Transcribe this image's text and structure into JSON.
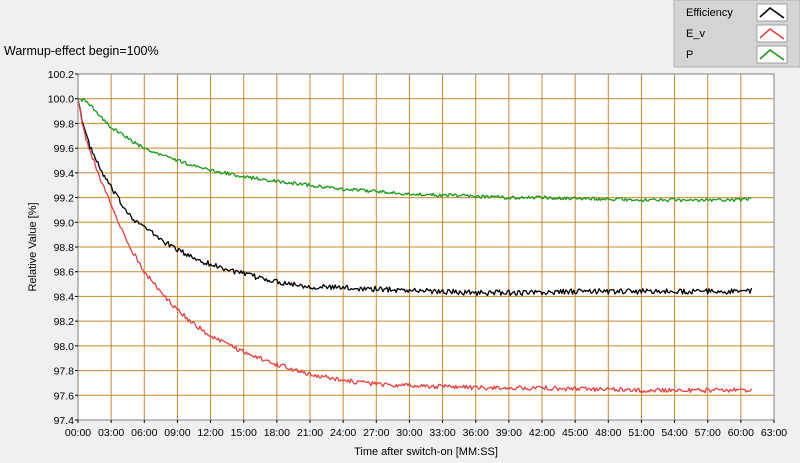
{
  "chart_data": {
    "type": "line",
    "title": "Warmup-effect begin=100%",
    "xlabel": "Time after switch-on [MM:SS]",
    "ylabel": "Relative Value [%]",
    "xlim_minutes": [
      0,
      63
    ],
    "ylim": [
      97.4,
      100.2
    ],
    "x_tick_labels": [
      "00:00",
      "03:00",
      "06:00",
      "09:00",
      "12:00",
      "15:00",
      "18:00",
      "21:00",
      "24:00",
      "27:00",
      "30:00",
      "33:00",
      "36:00",
      "39:00",
      "42:00",
      "45:00",
      "48:00",
      "51:00",
      "54:00",
      "57:00",
      "60:00",
      "63:00"
    ],
    "y_tick_labels": [
      "97.4",
      "97.6",
      "97.8",
      "98.0",
      "98.2",
      "98.4",
      "98.6",
      "98.8",
      "99.0",
      "99.2",
      "99.4",
      "99.6",
      "99.8",
      "100.0",
      "100.2"
    ],
    "grid": true,
    "plot_background": "#ffffff",
    "grid_color": "#c8882c",
    "legend_position": "top-right",
    "x_minutes": [
      0,
      0.5,
      1,
      2,
      3,
      4,
      5,
      6,
      8,
      10,
      12,
      15,
      18,
      21,
      24,
      27,
      30,
      33,
      36,
      39,
      42,
      45,
      48,
      51,
      54,
      57,
      60,
      61
    ],
    "series": [
      {
        "name": "Efficiency",
        "color": "#000000",
        "values": [
          100.0,
          99.78,
          99.63,
          99.43,
          99.28,
          99.14,
          99.03,
          98.96,
          98.83,
          98.73,
          98.66,
          98.58,
          98.52,
          98.48,
          98.47,
          98.46,
          98.45,
          98.44,
          98.43,
          98.43,
          98.43,
          98.44,
          98.44,
          98.44,
          98.44,
          98.44,
          98.44,
          98.45
        ]
      },
      {
        "name": "E_v",
        "color": "#e84040",
        "values": [
          100.0,
          99.75,
          99.6,
          99.36,
          99.14,
          98.94,
          98.75,
          98.6,
          98.38,
          98.21,
          98.08,
          97.95,
          97.85,
          97.77,
          97.72,
          97.69,
          97.68,
          97.67,
          97.66,
          97.66,
          97.66,
          97.65,
          97.65,
          97.64,
          97.64,
          97.64,
          97.64,
          97.64
        ]
      },
      {
        "name": "P",
        "color": "#1a9a1a",
        "values": [
          100.0,
          99.99,
          99.96,
          99.86,
          99.77,
          99.71,
          99.65,
          99.6,
          99.53,
          99.47,
          99.42,
          99.37,
          99.33,
          99.3,
          99.27,
          99.25,
          99.23,
          99.22,
          99.21,
          99.2,
          99.2,
          99.19,
          99.19,
          99.18,
          99.18,
          99.18,
          99.18,
          99.19
        ]
      }
    ]
  }
}
